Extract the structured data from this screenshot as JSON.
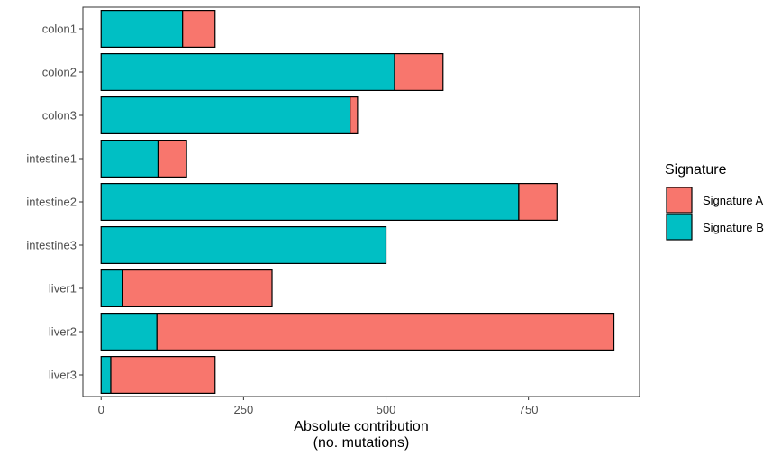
{
  "chart_data": {
    "type": "bar",
    "orientation": "horizontal",
    "stacked": true,
    "categories": [
      "colon1",
      "colon2",
      "colon3",
      "intestine1",
      "intestine2",
      "intestine3",
      "liver1",
      "liver2",
      "liver3"
    ],
    "series": [
      {
        "name": "Signature B",
        "color": "#00BFC4",
        "values": [
          143,
          515,
          437,
          100,
          733,
          500,
          37,
          98,
          17
        ]
      },
      {
        "name": "Signature A",
        "color": "#F8766D",
        "values": [
          57,
          85,
          13,
          50,
          67,
          0,
          263,
          802,
          183
        ]
      }
    ],
    "xlabel_line1": "Absolute contribution",
    "xlabel_line2": "(no. mutations)",
    "ylabel": "",
    "xlim": [
      -32,
      945
    ],
    "x_ticks": [
      "0",
      "250",
      "500",
      "750"
    ],
    "x_tick_values": [
      0,
      250,
      500,
      750
    ],
    "grid": false,
    "legend": {
      "title": "Signature",
      "position": "right",
      "entries": [
        {
          "label": "Signature A",
          "color": "#F8766D"
        },
        {
          "label": "Signature B",
          "color": "#00BFC4"
        }
      ]
    }
  }
}
